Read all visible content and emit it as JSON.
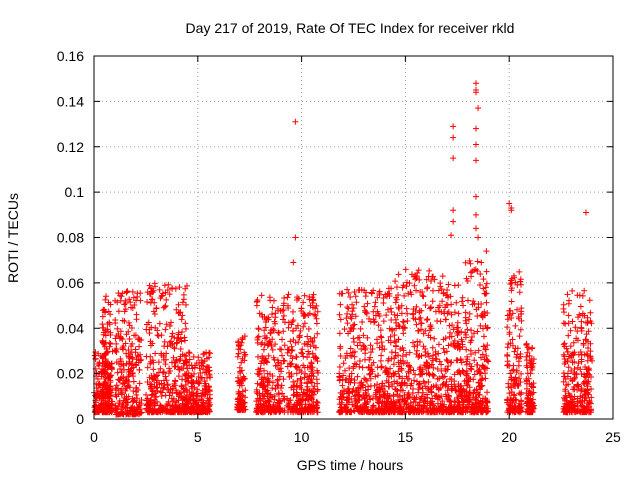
{
  "chart_data": {
    "type": "scatter",
    "title": "Day 217 of 2019, Rate Of TEC Index for receiver rkld",
    "xlabel": "GPS time / hours",
    "ylabel": "ROTI / TECUs",
    "xlim": [
      0,
      25
    ],
    "ylim": [
      0,
      0.16
    ],
    "x_ticks": [
      0,
      5,
      10,
      15,
      20,
      25
    ],
    "y_ticks": [
      0,
      0.02,
      0.04,
      0.06,
      0.08,
      0.1,
      0.12,
      0.14,
      0.16
    ],
    "x_tick_labels": [
      "0",
      "5",
      "10",
      "15",
      "20",
      "25"
    ],
    "y_tick_labels": [
      "0",
      "0.02",
      "0.04",
      "0.06",
      "0.08",
      "0.1",
      "0.12",
      "0.14",
      "0.16"
    ],
    "grid": true,
    "marker": "+",
    "marker_color": "#ff0000",
    "data_note": "Dense clusters of ROTI samples; clusters are given as time spans with a typical maximum, plus notable individual outliers.",
    "clusters": [
      {
        "x_start": 0.0,
        "x_end": 0.9,
        "y_min": 0.003,
        "y_max": 0.03
      },
      {
        "x_start": 0.4,
        "x_end": 0.8,
        "y_min": 0.01,
        "y_max": 0.055
      },
      {
        "x_start": 1.0,
        "x_end": 2.3,
        "y_min": 0.002,
        "y_max": 0.057
      },
      {
        "x_start": 2.5,
        "x_end": 4.5,
        "y_min": 0.003,
        "y_max": 0.06
      },
      {
        "x_start": 4.4,
        "x_end": 5.6,
        "y_min": 0.003,
        "y_max": 0.03
      },
      {
        "x_start": 6.9,
        "x_end": 7.3,
        "y_min": 0.004,
        "y_max": 0.04
      },
      {
        "x_start": 7.8,
        "x_end": 9.2,
        "y_min": 0.003,
        "y_max": 0.055
      },
      {
        "x_start": 9.3,
        "x_end": 10.8,
        "y_min": 0.003,
        "y_max": 0.055
      },
      {
        "x_start": 11.8,
        "x_end": 14.5,
        "y_min": 0.003,
        "y_max": 0.058
      },
      {
        "x_start": 14.5,
        "x_end": 16.5,
        "y_min": 0.003,
        "y_max": 0.066
      },
      {
        "x_start": 16.5,
        "x_end": 18.0,
        "y_min": 0.003,
        "y_max": 0.06
      },
      {
        "x_start": 17.9,
        "x_end": 19.0,
        "y_min": 0.003,
        "y_max": 0.07
      },
      {
        "x_start": 19.9,
        "x_end": 20.6,
        "y_min": 0.003,
        "y_max": 0.065
      },
      {
        "x_start": 20.8,
        "x_end": 21.2,
        "y_min": 0.003,
        "y_max": 0.035
      },
      {
        "x_start": 22.6,
        "x_end": 24.0,
        "y_min": 0.003,
        "y_max": 0.057
      }
    ],
    "outliers": [
      {
        "x": 9.7,
        "y": 0.131
      },
      {
        "x": 9.7,
        "y": 0.08
      },
      {
        "x": 9.6,
        "y": 0.069
      },
      {
        "x": 17.3,
        "y": 0.129
      },
      {
        "x": 17.3,
        "y": 0.124
      },
      {
        "x": 17.3,
        "y": 0.115
      },
      {
        "x": 17.3,
        "y": 0.092
      },
      {
        "x": 17.3,
        "y": 0.087
      },
      {
        "x": 17.2,
        "y": 0.081
      },
      {
        "x": 18.4,
        "y": 0.148
      },
      {
        "x": 18.4,
        "y": 0.145
      },
      {
        "x": 18.4,
        "y": 0.144
      },
      {
        "x": 18.5,
        "y": 0.137
      },
      {
        "x": 18.4,
        "y": 0.128
      },
      {
        "x": 18.4,
        "y": 0.121
      },
      {
        "x": 18.4,
        "y": 0.114
      },
      {
        "x": 18.4,
        "y": 0.098
      },
      {
        "x": 18.4,
        "y": 0.09
      },
      {
        "x": 18.4,
        "y": 0.084
      },
      {
        "x": 18.5,
        "y": 0.08
      },
      {
        "x": 18.9,
        "y": 0.074
      },
      {
        "x": 20.0,
        "y": 0.095
      },
      {
        "x": 20.1,
        "y": 0.093
      },
      {
        "x": 20.1,
        "y": 0.092
      },
      {
        "x": 23.7,
        "y": 0.091
      },
      {
        "x": 16.8,
        "y": 0.063
      }
    ]
  }
}
